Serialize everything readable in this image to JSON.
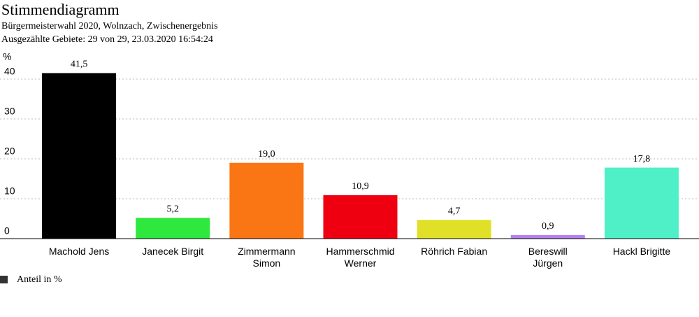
{
  "chart_data": {
    "type": "bar",
    "title": "Stimmendiagramm",
    "subtitle": [
      "Bürgermeisterwahl 2020, Wolnzach, Zwischenergebnis",
      "Ausgezählte Gebiete: 29 von 29, 23.03.2020 16:54:24"
    ],
    "y_label": "%",
    "categories": [
      "Machold Jens",
      "Janecek Birgit",
      "Zimmermann\nSimon",
      "Hammerschmid\nWerner",
      "Röhrich Fabian",
      "Bereswill\nJürgen",
      "Hackl Brigitte"
    ],
    "series": [
      {
        "name": "Anteil in %",
        "color": "#333333",
        "colors": [
          "#000000",
          "#2ee83e",
          "#fa7514",
          "#ee0011",
          "#e0e028",
          "#b380f0",
          "#4ff0c8"
        ],
        "values": [
          41.5,
          5.2,
          19.0,
          10.9,
          4.7,
          0.9,
          17.8
        ],
        "value_labels": [
          "41,5",
          "5,2",
          "19,0",
          "10,9",
          "4,7",
          "0,9",
          "17,8"
        ]
      }
    ],
    "ylim": [
      0,
      45
    ],
    "yticks": [
      0,
      10,
      20,
      30,
      40
    ],
    "grid": true
  }
}
